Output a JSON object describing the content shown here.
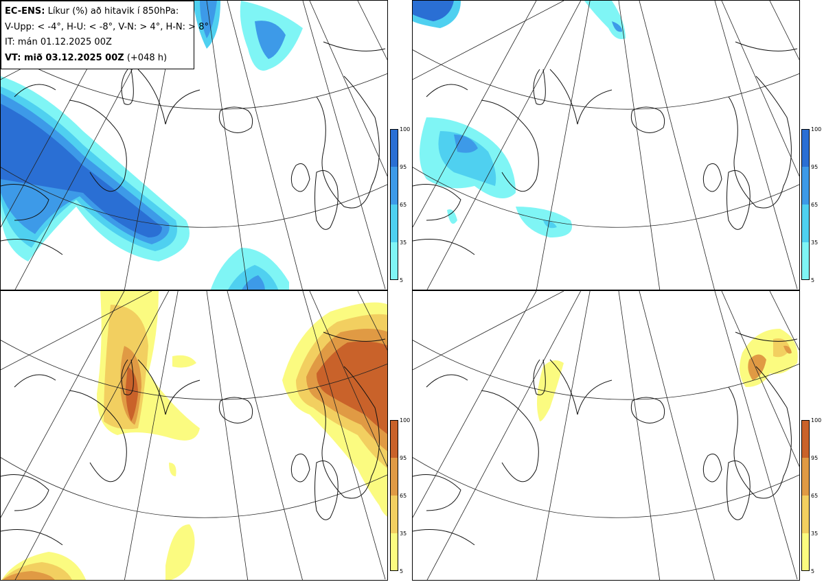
{
  "info": {
    "product": "EC-ENS:",
    "title_rest": "Líkur (%) að hitavik í 850hPa:",
    "legend_line": "V-Upp: < -4°, H-U: < -8°, V-N: > 4°, H-N: > 8°",
    "init_time": "IT: mán 01.12.2025 00Z",
    "valid_label": "VT: mið 03.12.2025 00Z",
    "lead": "(+048 h)"
  },
  "colorbars": {
    "ticks": [
      "100",
      "95",
      "65",
      "35",
      "5"
    ],
    "cold_colors": [
      "#7ff5f5",
      "#4fd0f0",
      "#3d9ae8",
      "#2a6fd4"
    ],
    "warm_colors": [
      "#fbfb80",
      "#f2cf60",
      "#e09a44",
      "#c9622a"
    ]
  },
  "panels": [
    {
      "id": "cold-moderate",
      "scheme": "cold"
    },
    {
      "id": "cold-strong",
      "scheme": "cold"
    },
    {
      "id": "warm-moderate",
      "scheme": "warm"
    },
    {
      "id": "warm-strong",
      "scheme": "warm"
    }
  ]
}
